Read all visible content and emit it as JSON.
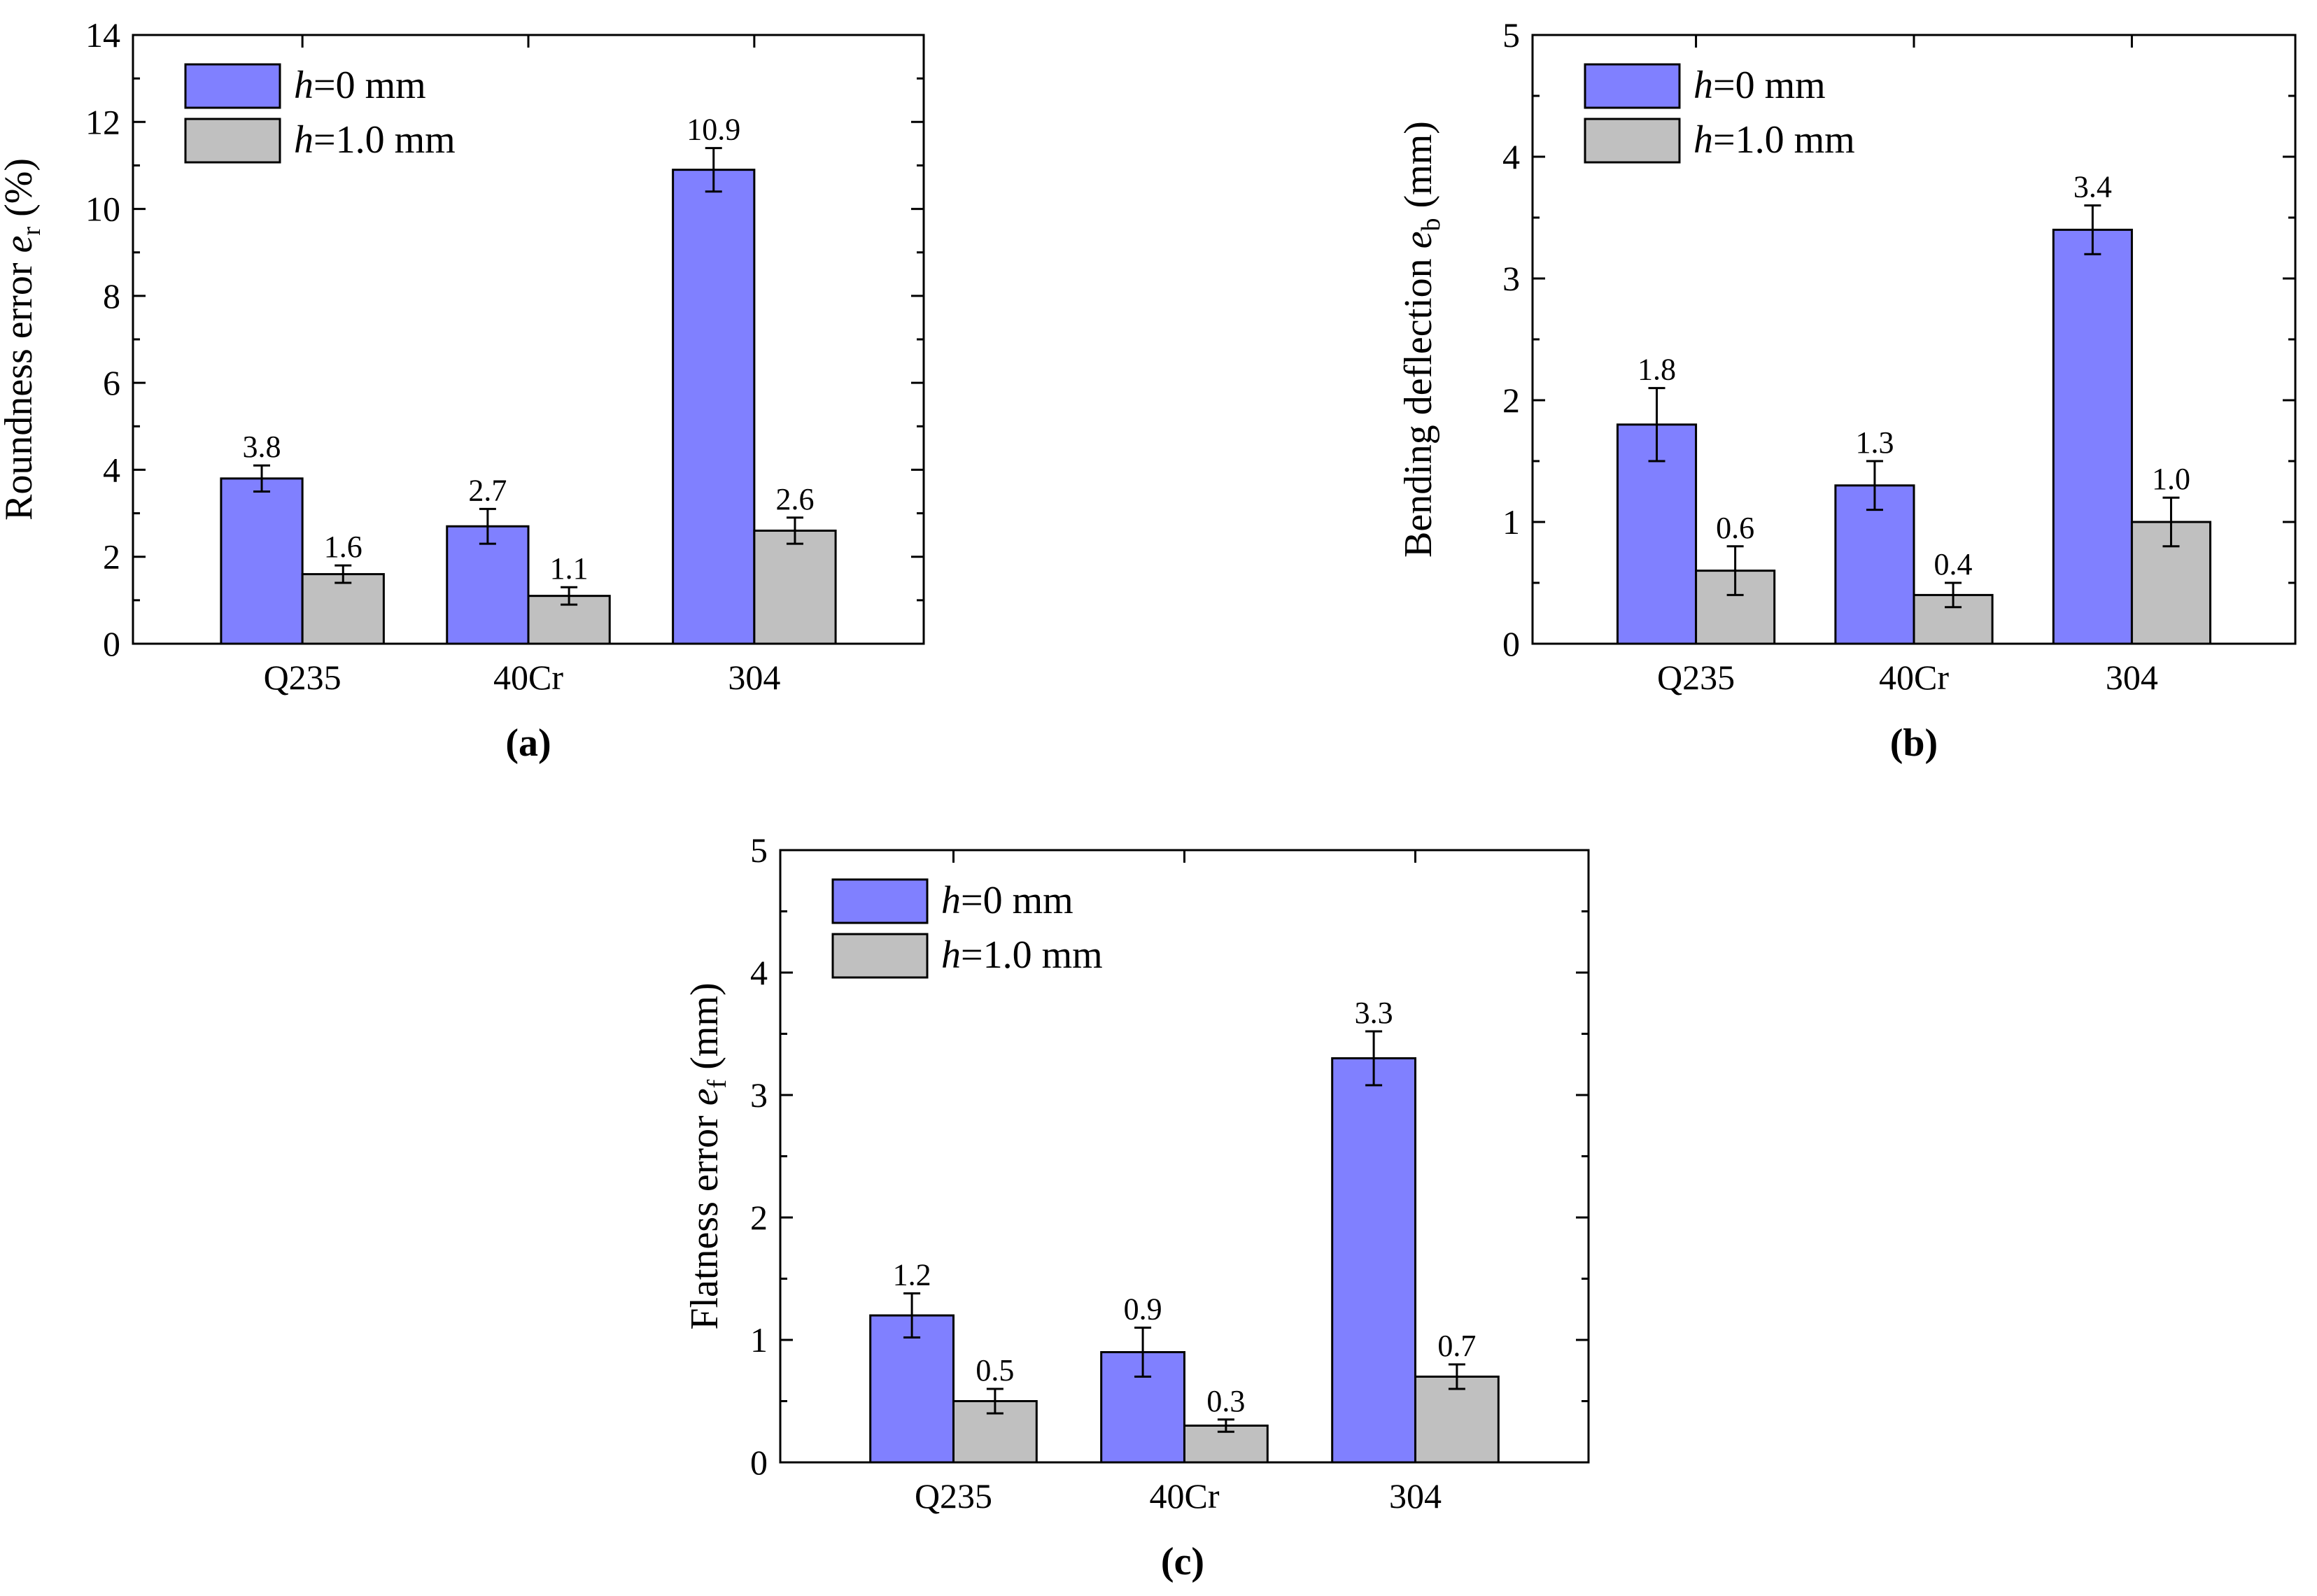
{
  "colors": {
    "h0": "#8080ff",
    "h1": "#c0c0c0",
    "axis": "#000000"
  },
  "chart_data": [
    {
      "type": "bar",
      "panel_label": "(a)",
      "categories": [
        "Q235",
        "40Cr",
        "304"
      ],
      "series": [
        {
          "name_italic": "h",
          "name_rest": "=0 mm",
          "values": [
            3.8,
            2.7,
            10.9
          ],
          "errors": [
            0.3,
            0.4,
            0.5
          ],
          "labels": [
            "3.8",
            "2.7",
            "10.9"
          ]
        },
        {
          "name_italic": "h",
          "name_rest": "=1.0 mm",
          "values": [
            1.6,
            1.1,
            2.6
          ],
          "errors": [
            0.2,
            0.2,
            0.3
          ],
          "labels": [
            "1.6",
            "1.1",
            "2.6"
          ]
        }
      ],
      "ylabel_pre": "Roundness error ",
      "ylabel_var": "e",
      "ylabel_sub": "r",
      "ylabel_post": " (%)",
      "ylim": [
        0,
        14
      ],
      "yticks": [
        "0",
        "2",
        "4",
        "6",
        "8",
        "10",
        "12",
        "14"
      ],
      "legend": "top-left"
    },
    {
      "type": "bar",
      "panel_label": "(b)",
      "categories": [
        "Q235",
        "40Cr",
        "304"
      ],
      "series": [
        {
          "name_italic": "h",
          "name_rest": "=0 mm",
          "values": [
            1.8,
            1.3,
            3.4
          ],
          "errors": [
            0.3,
            0.2,
            0.2
          ],
          "labels": [
            "1.8",
            "1.3",
            "3.4"
          ]
        },
        {
          "name_italic": "h",
          "name_rest": "=1.0 mm",
          "values": [
            0.6,
            0.4,
            1.0
          ],
          "errors": [
            0.2,
            0.1,
            0.2
          ],
          "labels": [
            "0.6",
            "0.4",
            "1.0"
          ]
        }
      ],
      "ylabel_pre": "Bending deflection ",
      "ylabel_var": "e",
      "ylabel_sub": "b",
      "ylabel_post": " (mm)",
      "ylim": [
        0,
        5
      ],
      "yticks": [
        "0",
        "1",
        "2",
        "3",
        "4",
        "5"
      ],
      "legend": "top-left"
    },
    {
      "type": "bar",
      "panel_label": "(c)",
      "categories": [
        "Q235",
        "40Cr",
        "304"
      ],
      "series": [
        {
          "name_italic": "h",
          "name_rest": "=0 mm",
          "values": [
            1.2,
            0.9,
            3.3
          ],
          "errors": [
            0.18,
            0.2,
            0.22
          ],
          "labels": [
            "1.2",
            "0.9",
            "3.3"
          ]
        },
        {
          "name_italic": "h",
          "name_rest": "=1.0 mm",
          "values": [
            0.5,
            0.3,
            0.7
          ],
          "errors": [
            0.1,
            0.05,
            0.1
          ],
          "labels": [
            "0.5",
            "0.3",
            "0.7"
          ]
        }
      ],
      "ylabel_pre": "Flatness error ",
      "ylabel_var": "e",
      "ylabel_sub": "f",
      "ylabel_post": " (mm)",
      "ylim": [
        0,
        5
      ],
      "yticks": [
        "0",
        "1",
        "2",
        "3",
        "4",
        "5"
      ],
      "legend": "top-left"
    }
  ]
}
